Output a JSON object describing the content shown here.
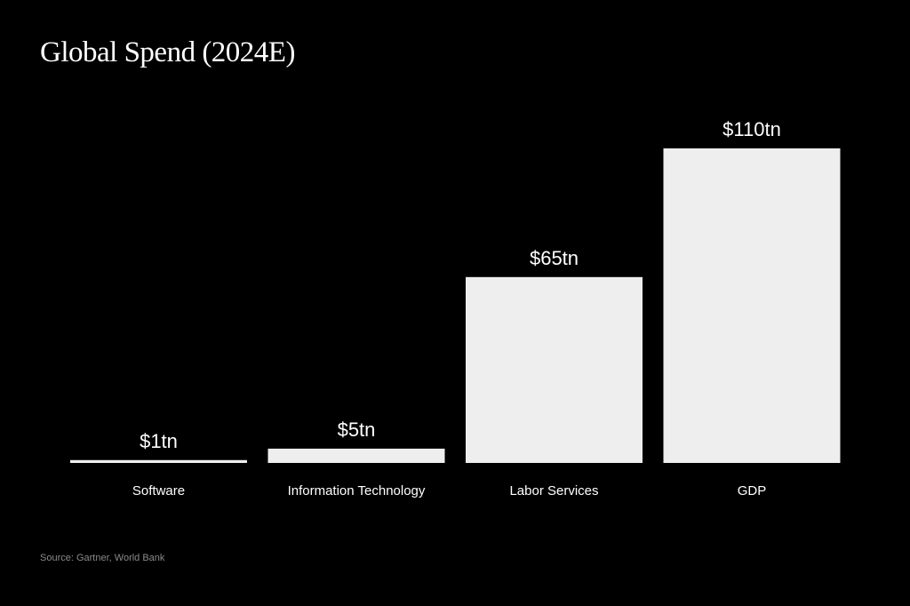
{
  "chart_data": {
    "type": "bar",
    "title": "Global Spend (2024E)",
    "categories": [
      "Software",
      "Information Technology",
      "Labor Services",
      "GDP"
    ],
    "values": [
      1,
      5,
      65,
      110
    ],
    "value_labels": [
      "$1tn",
      "$5tn",
      "$65tn",
      "$110tn"
    ],
    "unit": "tn USD",
    "xlabel": "",
    "ylabel": "",
    "ylim": [
      0,
      110
    ],
    "grid": false,
    "legend": "none",
    "bar_color": "#eeeeee",
    "background": "#000000",
    "source": "Source: Gartner, World Bank"
  }
}
